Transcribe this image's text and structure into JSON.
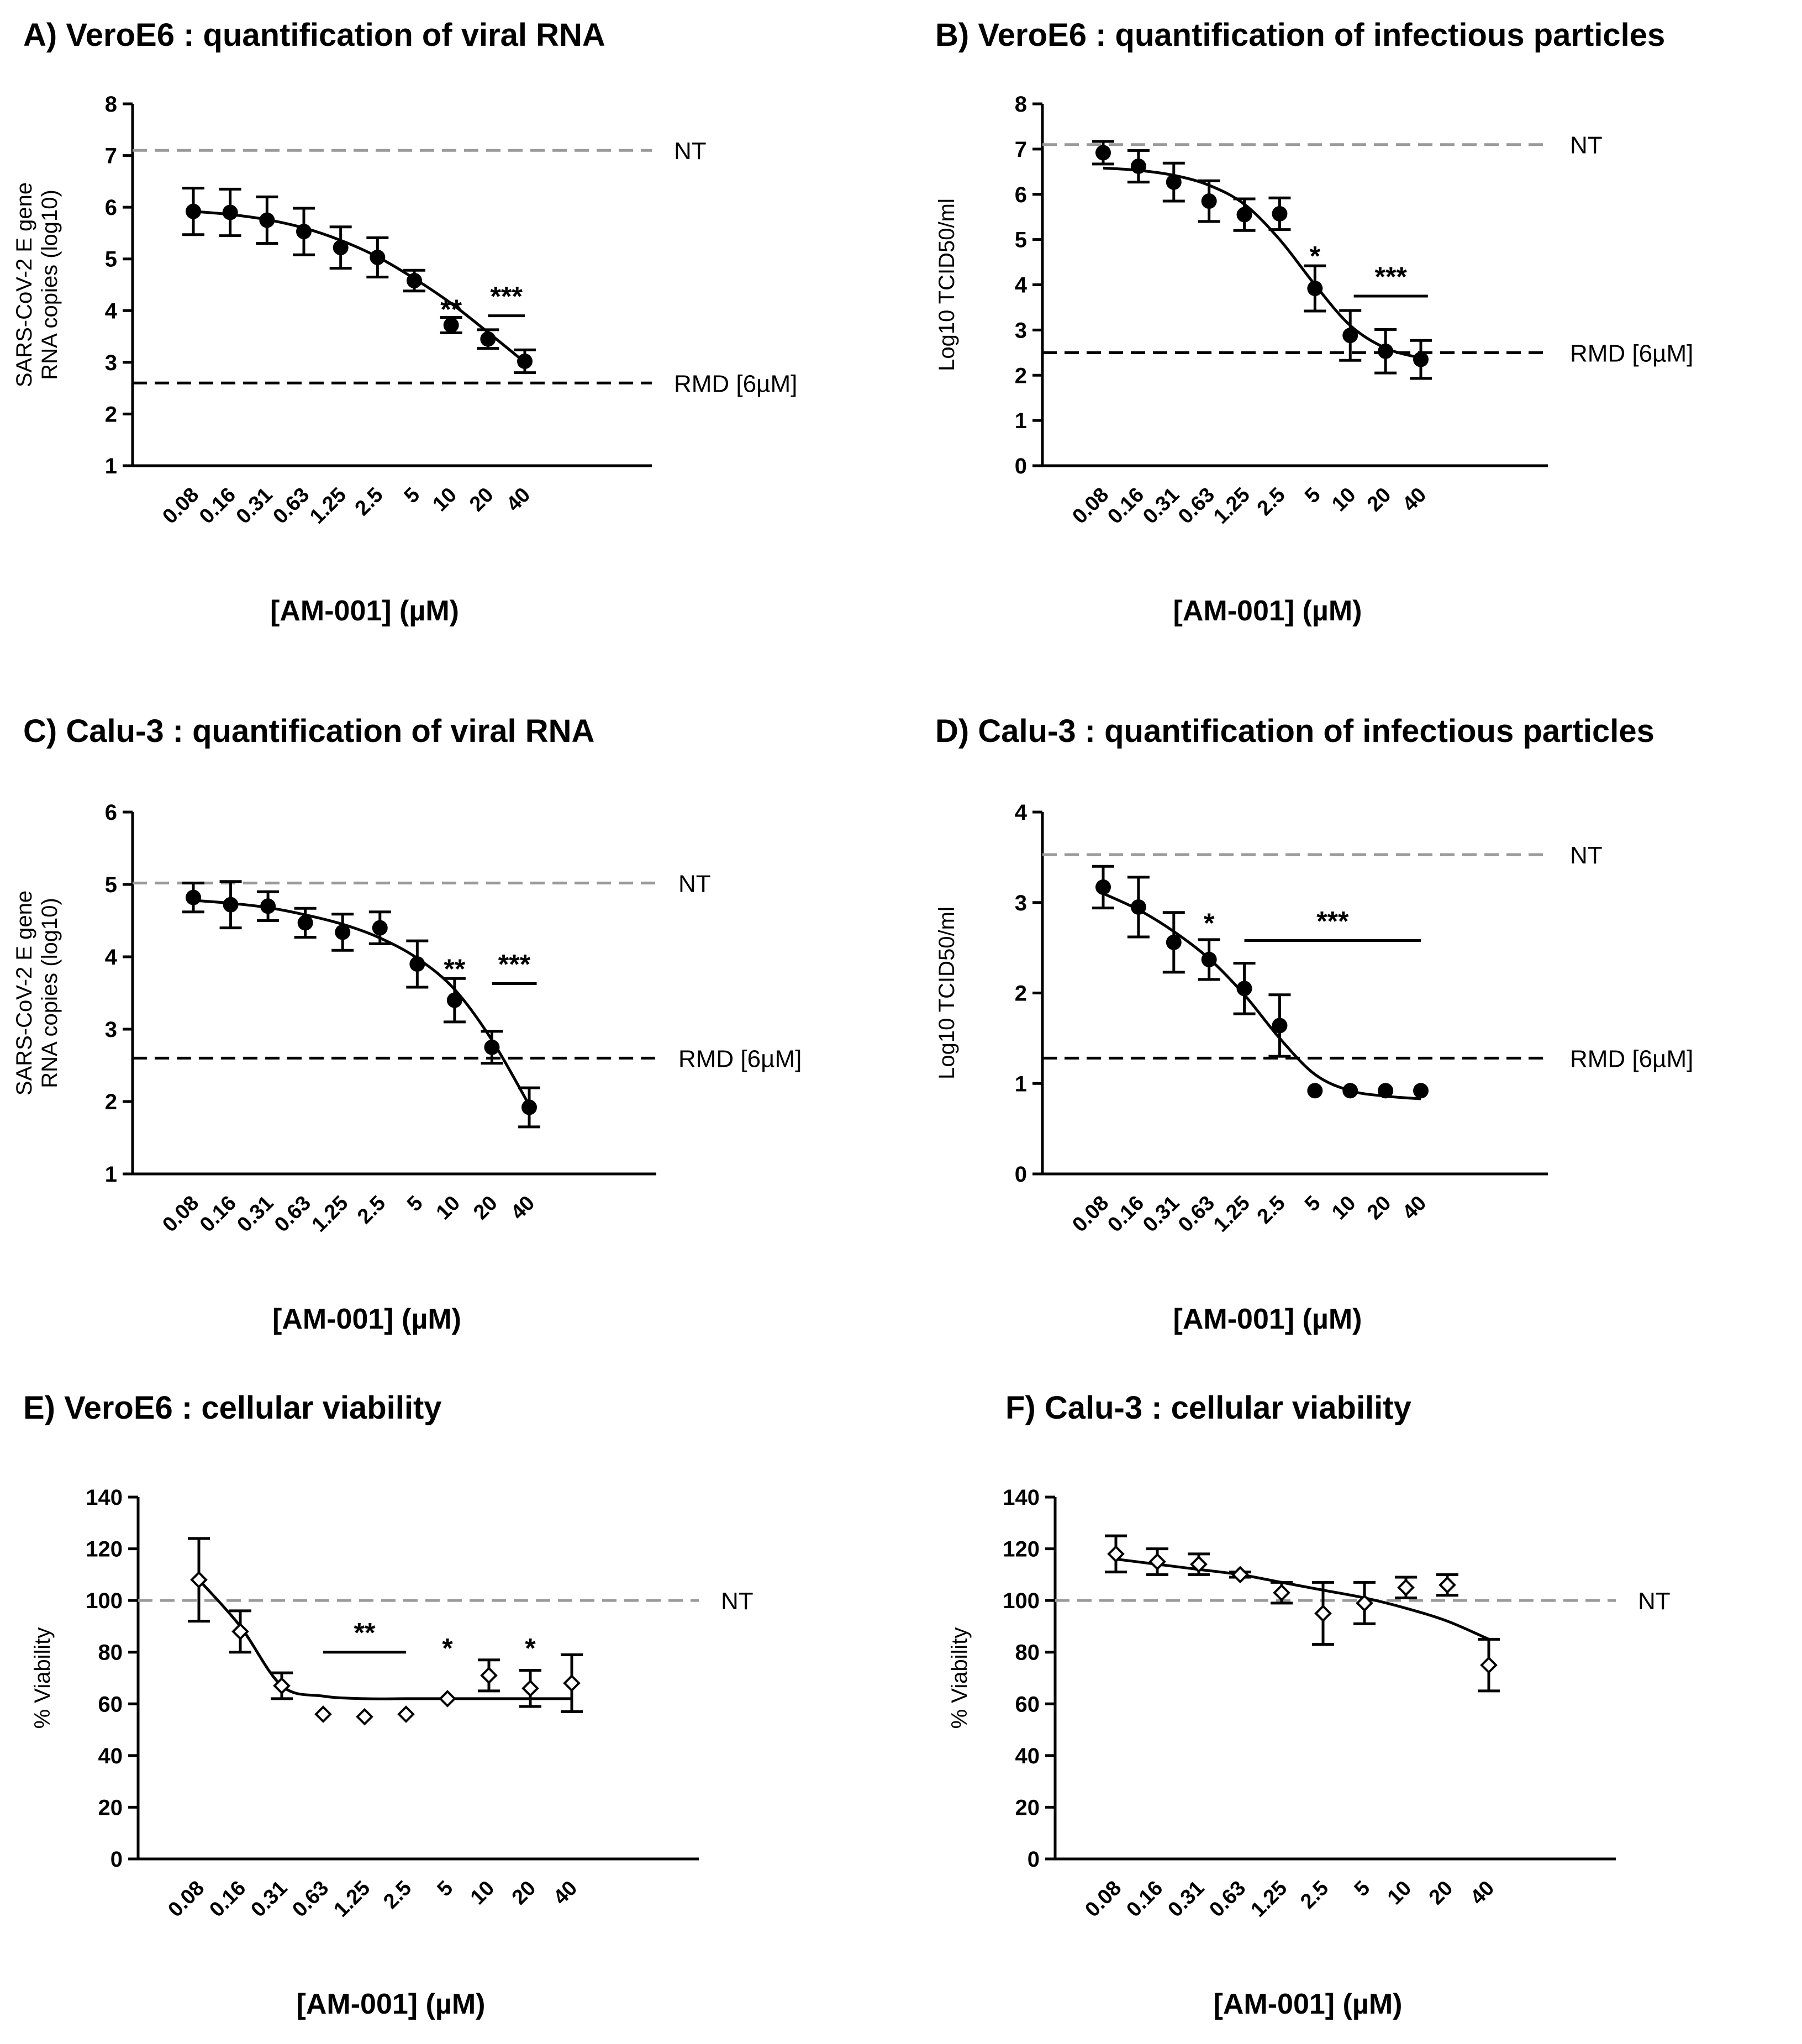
{
  "chart_data": [
    {
      "panel": "A",
      "type": "line",
      "title": "A) VeroE6 : quantification of viral RNA",
      "ylabel": [
        "SARS-CoV-2 E gene",
        "RNA copies (log10)"
      ],
      "xlabel": "[AM-001] (µM)",
      "categories": [
        "0.08",
        "0.16",
        "0.31",
        "0.63",
        "1.25",
        "2.5",
        "5",
        "10",
        "20",
        "40"
      ],
      "values": [
        5.92,
        5.9,
        5.75,
        5.53,
        5.22,
        5.03,
        4.58,
        3.72,
        3.45,
        3.02
      ],
      "errors": [
        0.45,
        0.45,
        0.45,
        0.45,
        0.4,
        0.38,
        0.2,
        0.15,
        0.18,
        0.22
      ],
      "fit": [
        5.92,
        5.86,
        5.76,
        5.6,
        5.36,
        5.04,
        4.62,
        4.14,
        3.58,
        3.0
      ],
      "marker": "filled-circle",
      "ylim": [
        1,
        8
      ],
      "yticks": [
        "1",
        "2",
        "3",
        "4",
        "5",
        "6",
        "7",
        "8"
      ],
      "reference_lines": [
        {
          "label": "NT",
          "value": 7.1,
          "style": "grey-dashed"
        },
        {
          "label": "RMD [6µM]",
          "value": 2.6,
          "style": "black-dashed"
        }
      ],
      "significance": [
        {
          "label": "**",
          "start": 7,
          "end": 7,
          "y": 3.95,
          "bar": false
        },
        {
          "label": "***",
          "start": 8,
          "end": 9,
          "y": 3.9,
          "bar": true
        }
      ]
    },
    {
      "panel": "B",
      "type": "line",
      "title": "B) VeroE6 : quantification of infectious particles",
      "ylabel": [
        "Log10 TCID50/ml"
      ],
      "xlabel": "[AM-001] (µM)",
      "categories": [
        "0.08",
        "0.16",
        "0.31",
        "0.63",
        "1.25",
        "2.5",
        "5",
        "10",
        "20",
        "40"
      ],
      "values": [
        6.92,
        6.62,
        6.27,
        5.85,
        5.55,
        5.57,
        3.92,
        2.88,
        2.53,
        2.35
      ],
      "errors": [
        0.25,
        0.35,
        0.42,
        0.45,
        0.35,
        0.35,
        0.5,
        0.55,
        0.48,
        0.42
      ],
      "fit": [
        6.58,
        6.53,
        6.42,
        6.2,
        5.78,
        5.0,
        4.0,
        3.1,
        2.6,
        2.38
      ],
      "marker": "filled-circle",
      "ylim": [
        0,
        8
      ],
      "yticks": [
        "0",
        "1",
        "2",
        "3",
        "4",
        "5",
        "6",
        "7",
        "8"
      ],
      "reference_lines": [
        {
          "label": "NT",
          "value": 7.1,
          "style": "grey-dashed"
        },
        {
          "label": "RMD [6µM]",
          "value": 2.5,
          "style": "black-dashed"
        }
      ],
      "significance": [
        {
          "label": "*",
          "start": 6,
          "end": 6,
          "y": 4.55,
          "bar": false
        },
        {
          "label": "***",
          "start": 7.1,
          "end": 9.2,
          "y": 3.75,
          "bar": true
        }
      ]
    },
    {
      "panel": "C",
      "type": "line",
      "title": "C) Calu-3 : quantification of viral RNA",
      "ylabel": [
        "SARS-CoV-2 E gene",
        "RNA copies (log10)"
      ],
      "xlabel": "[AM-001] (µM)",
      "categories": [
        "0.08",
        "0.16",
        "0.31",
        "0.63",
        "1.25",
        "2.5",
        "5",
        "10",
        "20",
        "40"
      ],
      "values": [
        4.82,
        4.72,
        4.7,
        4.47,
        4.34,
        4.4,
        3.9,
        3.4,
        2.75,
        1.92
      ],
      "errors": [
        0.2,
        0.32,
        0.2,
        0.2,
        0.25,
        0.22,
        0.32,
        0.3,
        0.22,
        0.27
      ],
      "fit": [
        4.78,
        4.74,
        4.68,
        4.58,
        4.45,
        4.26,
        3.98,
        3.55,
        2.85,
        1.95
      ],
      "marker": "filled-circle",
      "ylim": [
        1,
        6
      ],
      "yticks": [
        "1",
        "2",
        "3",
        "4",
        "5",
        "6"
      ],
      "reference_lines": [
        {
          "label": "NT",
          "value": 5.02,
          "style": "grey-dashed"
        },
        {
          "label": "RMD [6µM]",
          "value": 2.6,
          "style": "black-dashed"
        }
      ],
      "significance": [
        {
          "label": "**",
          "start": 7,
          "end": 7,
          "y": 3.78,
          "bar": false
        },
        {
          "label": "***",
          "start": 8,
          "end": 9.2,
          "y": 3.63,
          "bar": true
        }
      ]
    },
    {
      "panel": "D",
      "type": "line",
      "title": "D) Calu-3 : quantification of infectious particles",
      "ylabel": [
        "Log10 TCID50/ml"
      ],
      "xlabel": "[AM-001] (µM)",
      "categories": [
        "0.08",
        "0.16",
        "0.31",
        "0.63",
        "1.25",
        "2.5",
        "5",
        "10",
        "20",
        "40"
      ],
      "values": [
        3.17,
        2.95,
        2.56,
        2.37,
        2.05,
        1.64,
        0.92,
        0.92,
        0.92,
        0.92
      ],
      "errors": [
        0.23,
        0.33,
        0.33,
        0.22,
        0.28,
        0.34,
        0,
        0,
        0,
        0
      ],
      "fit": [
        3.1,
        2.92,
        2.68,
        2.38,
        1.98,
        1.5,
        1.1,
        0.92,
        0.86,
        0.83
      ],
      "marker": "filled-circle",
      "ylim": [
        0,
        4
      ],
      "yticks": [
        "0",
        "1",
        "2",
        "3",
        "4"
      ],
      "reference_lines": [
        {
          "label": "NT",
          "value": 3.53,
          "style": "grey-dashed"
        },
        {
          "label": "RMD [6µM]",
          "value": 1.28,
          "style": "black-dashed"
        }
      ],
      "significance": [
        {
          "label": "*",
          "start": 3,
          "end": 3,
          "y": 2.73,
          "bar": false
        },
        {
          "label": "***",
          "start": 4,
          "end": 9,
          "y": 2.58,
          "bar": true
        }
      ]
    },
    {
      "panel": "E",
      "type": "line",
      "title": "E) VeroE6 : cellular viability",
      "ylabel": [
        "% Viability"
      ],
      "xlabel": "[AM-001] (µM)",
      "categories": [
        "0.08",
        "0.16",
        "0.31",
        "0.63",
        "1.25",
        "2.5",
        "5",
        "10",
        "20",
        "40"
      ],
      "values": [
        108,
        88,
        67,
        56,
        55,
        56,
        62,
        71,
        66,
        68
      ],
      "errors": [
        16,
        8,
        5,
        0,
        0,
        0,
        0,
        6,
        7,
        11
      ],
      "fit": [
        108,
        90,
        67,
        63,
        62,
        62,
        62,
        62,
        62,
        62
      ],
      "marker": "open-diamond",
      "ylim": [
        0,
        140
      ],
      "yticks": [
        "0",
        "20",
        "40",
        "60",
        "80",
        "100",
        "120",
        "140"
      ],
      "reference_lines": [
        {
          "label": "NT",
          "value": 100,
          "style": "grey-dashed"
        }
      ],
      "significance": [
        {
          "label": "**",
          "start": 3,
          "end": 5,
          "y": 80,
          "bar": true
        },
        {
          "label": "*",
          "start": 6,
          "end": 6,
          "y": 80,
          "bar": false
        },
        {
          "label": "*",
          "start": 8,
          "end": 8,
          "y": 80,
          "bar": false
        }
      ]
    },
    {
      "panel": "F",
      "type": "line",
      "title": "F) Calu-3 : cellular viability",
      "ylabel": [
        "% Viability"
      ],
      "xlabel": "[AM-001] (µM)",
      "categories": [
        "0.08",
        "0.16",
        "0.31",
        "0.63",
        "1.25",
        "2.5",
        "5",
        "10",
        "20",
        "40"
      ],
      "values": [
        118,
        115,
        114,
        110,
        103,
        95,
        99,
        105,
        106,
        75
      ],
      "errors": [
        7,
        5,
        4,
        1,
        4,
        12,
        8,
        4,
        4,
        10
      ],
      "fit": [
        116,
        114,
        112,
        110,
        107,
        104,
        101,
        97,
        92,
        85
      ],
      "marker": "open-diamond",
      "ylim": [
        0,
        140
      ],
      "yticks": [
        "0",
        "20",
        "40",
        "60",
        "80",
        "100",
        "120",
        "140"
      ],
      "reference_lines": [
        {
          "label": "NT",
          "value": 100,
          "style": "grey-dashed"
        }
      ],
      "significance": []
    }
  ],
  "colors": {
    "axis": "#000000",
    "nt_line": "#9a9a9a",
    "rmd_line": "#000000",
    "marker": "#000000",
    "background": "#ffffff"
  }
}
